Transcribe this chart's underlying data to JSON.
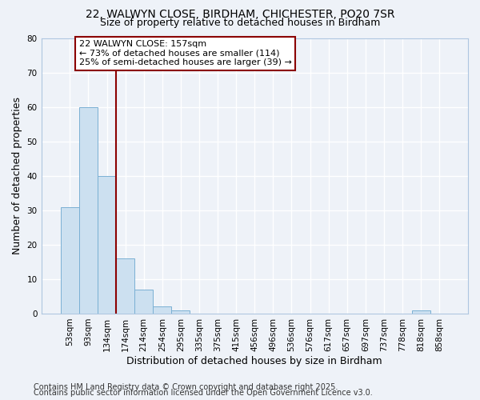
{
  "title1": "22, WALWYN CLOSE, BIRDHAM, CHICHESTER, PO20 7SR",
  "title2": "Size of property relative to detached houses in Birdham",
  "categories": [
    "53sqm",
    "93sqm",
    "134sqm",
    "174sqm",
    "214sqm",
    "254sqm",
    "295sqm",
    "335sqm",
    "375sqm",
    "415sqm",
    "456sqm",
    "496sqm",
    "536sqm",
    "576sqm",
    "617sqm",
    "657sqm",
    "697sqm",
    "737sqm",
    "778sqm",
    "818sqm",
    "858sqm"
  ],
  "values": [
    31,
    60,
    40,
    16,
    7,
    2,
    1,
    0,
    0,
    0,
    0,
    0,
    0,
    0,
    0,
    0,
    0,
    0,
    0,
    1,
    0
  ],
  "bar_color": "#cce0f0",
  "bar_edge_color": "#7ab0d4",
  "ylabel": "Number of detached properties",
  "xlabel": "Distribution of detached houses by size in Birdham",
  "ylim": [
    0,
    80
  ],
  "yticks": [
    0,
    10,
    20,
    30,
    40,
    50,
    60,
    70,
    80
  ],
  "vline_x_index": 2,
  "vline_color": "#8b0000",
  "annotation_line1": "22 WALWYN CLOSE: 157sqm",
  "annotation_line2": "← 73% of detached houses are smaller (114)",
  "annotation_line3": "25% of semi-detached houses are larger (39) →",
  "annotation_box_color": "#8b0000",
  "annotation_bg": "#ffffff",
  "footer1": "Contains HM Land Registry data © Crown copyright and database right 2025.",
  "footer2": "Contains public sector information licensed under the Open Government Licence v3.0.",
  "background_color": "#eef2f8",
  "grid_color": "#ffffff",
  "title_fontsize": 10,
  "subtitle_fontsize": 9,
  "tick_fontsize": 7.5,
  "label_fontsize": 9,
  "footer_fontsize": 7,
  "ann_fontsize": 8
}
